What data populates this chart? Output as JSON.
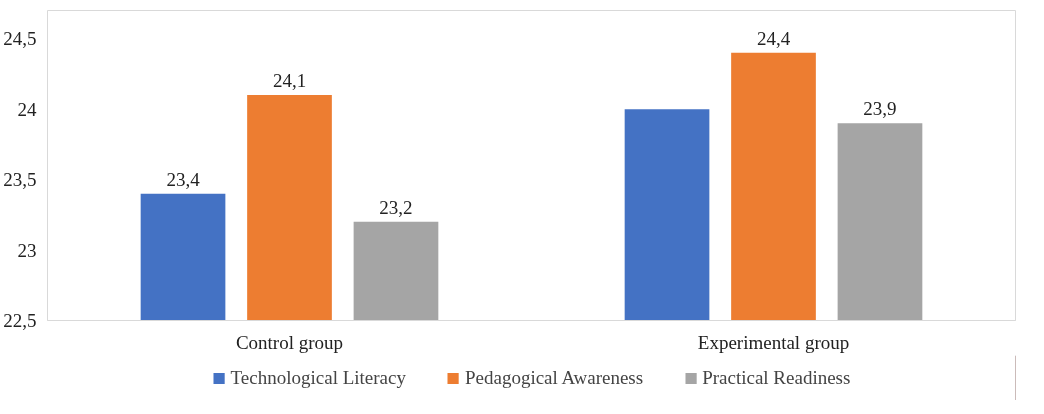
{
  "chart_data": {
    "type": "bar",
    "categories": [
      "Control group",
      "Experimental group"
    ],
    "series": [
      {
        "name": "Technological Literacy",
        "color": "#4472c4",
        "values": [
          23.4,
          24.0
        ],
        "value_labels": [
          "23,4",
          null
        ]
      },
      {
        "name": "Pedagogical Awareness",
        "color": "#ed7d31",
        "values": [
          24.1,
          24.4
        ],
        "value_labels": [
          "24,1",
          "24,4"
        ]
      },
      {
        "name": "Practical Readiness",
        "color": "#a5a5a5",
        "values": [
          23.2,
          23.9
        ],
        "value_labels": [
          "23,2",
          "23,9"
        ]
      }
    ],
    "ylim": [
      22.5,
      24.7
    ],
    "yticks": [
      {
        "value": 22.5,
        "label": "22,5"
      },
      {
        "value": 23,
        "label": "23"
      },
      {
        "value": 23.5,
        "label": "23,5"
      },
      {
        "value": 24,
        "label": "24"
      },
      {
        "value": 24.5,
        "label": "24,5"
      }
    ],
    "grid": false,
    "legend": "bottom"
  }
}
